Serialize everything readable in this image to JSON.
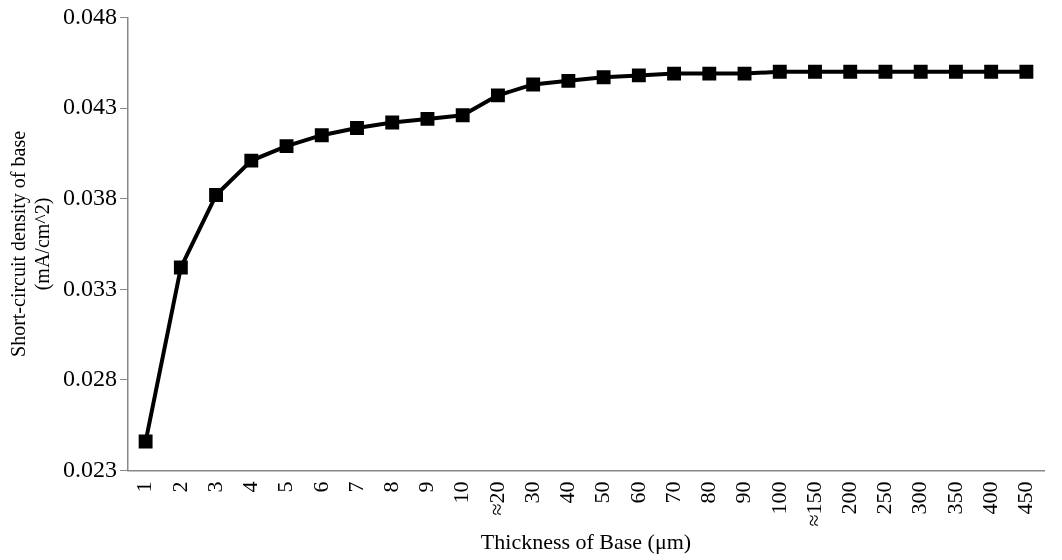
{
  "chart_data": {
    "type": "line",
    "xlabel": "Thickness of Base (μm)",
    "ylabel": "Short-circuit density of base (mA/cm^2)",
    "categories": [
      "1",
      "2",
      "3",
      "4",
      "5",
      "6",
      "7",
      "8",
      "9",
      "10",
      "≈20",
      "30",
      "40",
      "50",
      "60",
      "70",
      "80",
      "90",
      "100",
      "≈150",
      "200",
      "250",
      "300",
      "350",
      "400",
      "450"
    ],
    "series": [
      {
        "color": "#000000",
        "values": [
          0.0246,
          0.0342,
          0.0382,
          0.0401,
          0.0409,
          0.0415,
          0.0419,
          0.0422,
          0.0424,
          0.0426,
          0.0437,
          0.0443,
          0.0445,
          0.0447,
          0.0448,
          0.0449,
          0.0449,
          0.0449,
          0.045,
          0.045,
          0.045,
          0.045,
          0.045,
          0.045,
          0.045,
          0.045
        ]
      }
    ],
    "ylim": [
      0.023,
      0.048
    ],
    "yticks": [
      0.023,
      0.028,
      0.033,
      0.038,
      0.043,
      0.048
    ],
    "grid": false,
    "legend": false,
    "marker": "square",
    "line_style": "solid"
  }
}
